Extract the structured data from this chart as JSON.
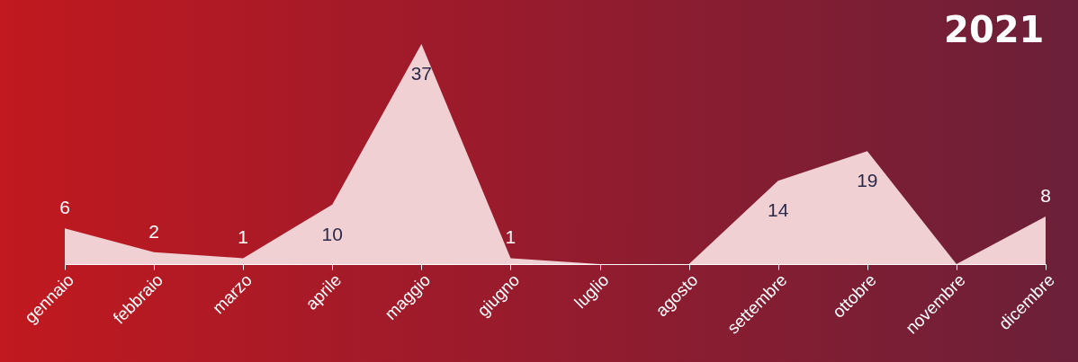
{
  "chart_data": {
    "type": "area",
    "title": "2021",
    "categories": [
      "gennaio",
      "febbraio",
      "marzo",
      "aprile",
      "maggio",
      "giugno",
      "luglio",
      "agosto",
      "settembre",
      "ottobre",
      "novembre",
      "dicembre"
    ],
    "values": [
      6,
      2,
      1,
      10,
      37,
      1,
      0,
      0,
      14,
      19,
      0,
      8
    ],
    "value_labels": [
      "6",
      "2",
      "1",
      "10",
      "37",
      "1",
      null,
      null,
      "14",
      "19",
      null,
      "8"
    ],
    "color": "#f0d0d2"
  }
}
